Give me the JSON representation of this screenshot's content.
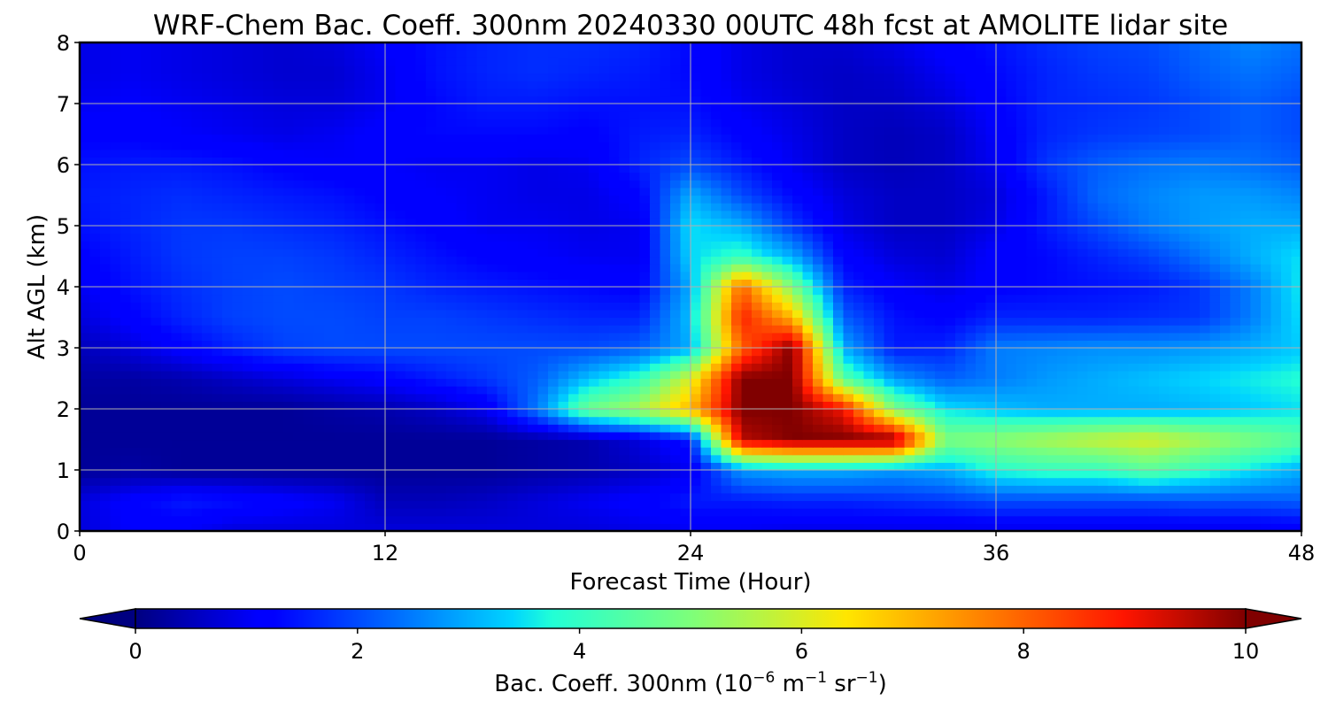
{
  "chart_data": {
    "type": "heatmap",
    "title": "WRF-Chem Bac. Coeff. 300nm  20240330 00UTC 48h fcst at AMOLITE lidar site",
    "xlabel": "Forecast Time (Hour)",
    "ylabel": "Alt AGL (km)",
    "xlim": [
      0,
      48
    ],
    "ylim": [
      0,
      8
    ],
    "x_ticks": [
      0,
      12,
      24,
      36,
      48
    ],
    "y_ticks": [
      0,
      1,
      2,
      3,
      4,
      5,
      6,
      7,
      8
    ],
    "grid": true,
    "colormap": "jet",
    "colorbar": {
      "orientation": "horizontal",
      "placement": "bottom",
      "range": [
        0,
        10
      ],
      "extend": "both",
      "ticks": [
        0,
        2,
        4,
        6,
        8,
        10
      ],
      "label_prefix": "Bac. Coeff. 300nm  (10",
      "label_exp1": "−6",
      "label_mid": " m",
      "label_exp2": "−1",
      "label_mid2": " sr",
      "label_exp3": "−1",
      "label_suffix": ")"
    },
    "x": [
      0,
      2,
      4,
      6,
      8,
      10,
      12,
      14,
      16,
      18,
      20,
      22,
      24,
      26,
      28,
      30,
      32,
      34,
      36,
      38,
      40,
      42,
      44,
      46,
      48
    ],
    "y": [
      0,
      0.5,
      1,
      1.5,
      2,
      2.5,
      3,
      3.5,
      4,
      4.5,
      5,
      5.5,
      6,
      6.5,
      7,
      7.5,
      8
    ],
    "values": [
      [
        0.8,
        1.1,
        1.1,
        0.8,
        0.8,
        0.8,
        0.8,
        0.8,
        0.8,
        0.8,
        0.8,
        0.9,
        1.0,
        1.0,
        0.9,
        0.9,
        0.9,
        0.9,
        0.9,
        0.9,
        0.9,
        0.9,
        0.9,
        0.9,
        1.0
      ],
      [
        0.8,
        1.2,
        1.5,
        1.4,
        1.2,
        1.0,
        0.5,
        0.5,
        0.6,
        0.8,
        1.0,
        1.2,
        1.5,
        1.5,
        1.6,
        1.6,
        1.7,
        1.8,
        2.0,
        2.0,
        2.0,
        2.0,
        2.1,
        2.1,
        2.2
      ],
      [
        0.2,
        0.3,
        0.2,
        0.2,
        0.2,
        0.2,
        0.2,
        0.2,
        0.2,
        0.3,
        0.4,
        0.6,
        1.0,
        2.8,
        3.0,
        3.0,
        2.8,
        3.0,
        3.8,
        4.0,
        4.0,
        4.5,
        4.0,
        3.5,
        3.0
      ],
      [
        0.2,
        0.2,
        0.2,
        0.2,
        0.2,
        0.2,
        0.2,
        0.2,
        0.2,
        0.3,
        0.4,
        0.8,
        1.5,
        9.5,
        10.0,
        10.0,
        10.0,
        5.0,
        5.2,
        5.5,
        5.8,
        6.0,
        5.5,
        5.0,
        4.5
      ],
      [
        0.2,
        0.2,
        0.2,
        0.2,
        0.2,
        0.3,
        0.4,
        0.6,
        1.0,
        2.5,
        4.8,
        5.5,
        7.0,
        10.0,
        10.0,
        9.0,
        5.0,
        3.5,
        3.2,
        3.0,
        3.0,
        3.0,
        3.1,
        3.3,
        3.5
      ],
      [
        0.3,
        0.3,
        0.4,
        0.6,
        0.8,
        1.0,
        1.2,
        1.5,
        1.8,
        2.2,
        3.2,
        4.0,
        6.0,
        10.0,
        10.0,
        4.5,
        2.8,
        2.2,
        2.5,
        2.8,
        3.0,
        3.2,
        3.4,
        3.6,
        3.8
      ],
      [
        0.5,
        0.8,
        1.2,
        1.6,
        1.9,
        2.0,
        2.0,
        2.0,
        2.0,
        2.0,
        2.0,
        2.2,
        3.0,
        8.0,
        10.0,
        3.0,
        1.5,
        1.6,
        2.5,
        2.6,
        2.7,
        2.7,
        2.8,
        3.0,
        3.3
      ],
      [
        0.8,
        1.2,
        1.6,
        1.9,
        2.0,
        2.0,
        1.9,
        1.9,
        1.8,
        1.7,
        1.6,
        1.6,
        3.2,
        8.8,
        7.0,
        2.2,
        1.4,
        1.2,
        1.6,
        1.6,
        1.6,
        1.7,
        1.8,
        2.5,
        3.5
      ],
      [
        1.0,
        1.4,
        1.7,
        1.9,
        2.0,
        1.9,
        1.8,
        1.6,
        1.5,
        1.4,
        1.3,
        1.2,
        3.0,
        8.0,
        5.0,
        1.6,
        1.1,
        0.9,
        1.2,
        1.3,
        1.4,
        1.5,
        1.8,
        2.5,
        3.6
      ],
      [
        1.2,
        1.5,
        1.8,
        1.9,
        1.9,
        1.8,
        1.6,
        1.4,
        1.2,
        1.1,
        1.0,
        1.0,
        3.4,
        4.0,
        3.0,
        1.2,
        0.8,
        0.7,
        1.2,
        1.3,
        1.6,
        1.9,
        2.4,
        3.0,
        3.5
      ],
      [
        1.4,
        1.6,
        1.8,
        1.8,
        1.7,
        1.6,
        1.4,
        1.2,
        1.0,
        1.0,
        0.9,
        1.0,
        3.5,
        3.0,
        1.8,
        0.9,
        0.6,
        0.6,
        0.9,
        1.5,
        2.0,
        2.5,
        2.8,
        3.0,
        3.0
      ],
      [
        1.5,
        1.6,
        1.7,
        1.6,
        1.5,
        1.4,
        1.2,
        1.1,
        1.0,
        0.9,
        0.9,
        1.2,
        3.0,
        2.0,
        1.3,
        0.8,
        0.6,
        0.6,
        0.8,
        1.5,
        2.3,
        2.6,
        2.8,
        2.8,
        2.6
      ],
      [
        1.4,
        1.5,
        1.5,
        1.4,
        1.2,
        1.1,
        1.1,
        1.0,
        1.0,
        0.9,
        1.0,
        1.6,
        2.0,
        1.5,
        1.0,
        0.6,
        0.5,
        0.6,
        1.0,
        1.8,
        2.2,
        2.4,
        2.5,
        2.4,
        2.2
      ],
      [
        1.2,
        1.2,
        1.1,
        1.0,
        0.9,
        1.0,
        1.2,
        1.3,
        1.3,
        1.3,
        1.2,
        1.5,
        1.6,
        1.2,
        0.9,
        0.6,
        0.5,
        0.6,
        1.1,
        1.6,
        1.8,
        1.9,
        2.0,
        2.2,
        2.0
      ],
      [
        1.0,
        1.1,
        1.0,
        0.9,
        0.8,
        0.8,
        1.0,
        1.3,
        1.5,
        1.5,
        1.4,
        1.4,
        1.4,
        1.0,
        0.8,
        0.6,
        0.6,
        0.8,
        1.2,
        1.6,
        1.7,
        1.8,
        2.0,
        2.2,
        2.0
      ],
      [
        0.9,
        1.0,
        0.9,
        0.8,
        0.7,
        0.7,
        1.0,
        1.4,
        1.6,
        1.7,
        1.6,
        1.5,
        1.3,
        0.9,
        0.7,
        0.6,
        0.7,
        1.0,
        1.3,
        1.6,
        1.8,
        1.9,
        2.2,
        2.4,
        2.2
      ],
      [
        0.9,
        1.0,
        0.9,
        0.8,
        0.7,
        0.8,
        1.1,
        1.4,
        1.6,
        1.7,
        1.7,
        1.6,
        1.3,
        0.9,
        0.7,
        0.7,
        0.9,
        1.2,
        1.4,
        1.7,
        1.9,
        2.0,
        2.3,
        2.6,
        2.4
      ]
    ]
  }
}
